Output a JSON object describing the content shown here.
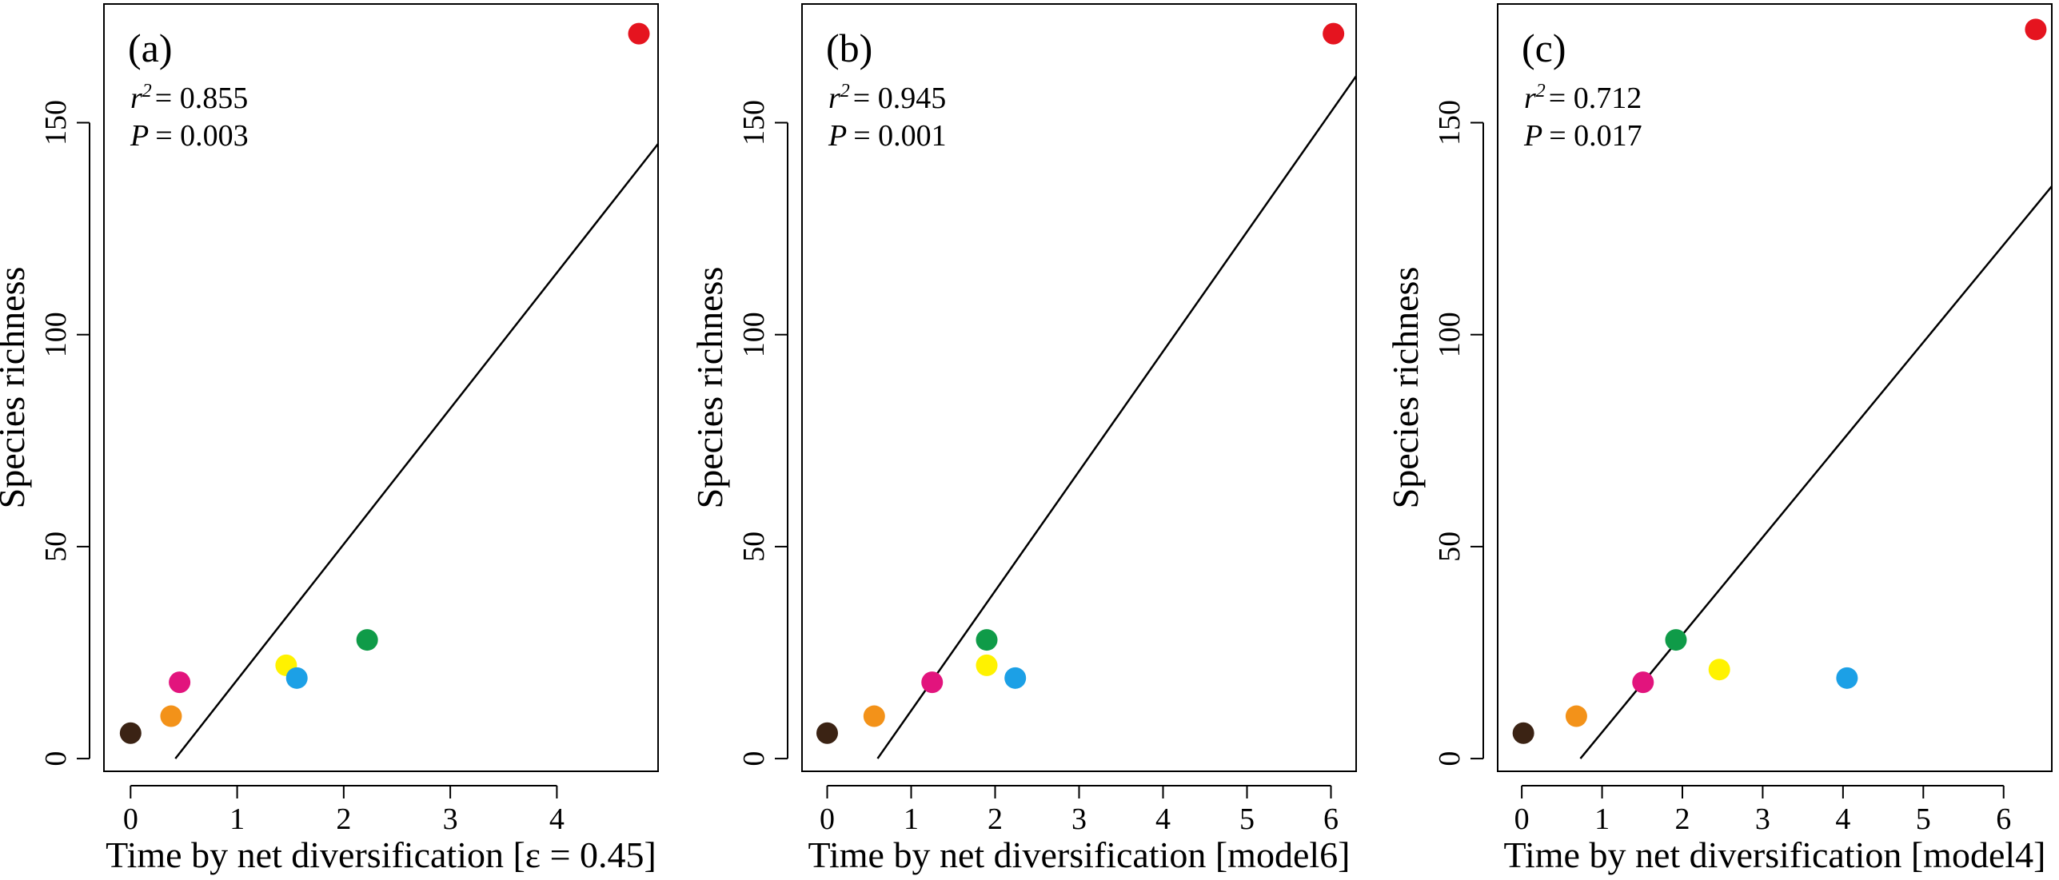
{
  "chart_data": [
    {
      "type": "scatter",
      "panel_label": "(a)",
      "xlabel": "Time by net diversification [ε = 0.45]",
      "ylabel": "Species richness",
      "xlim": [
        -0.25,
        4.95
      ],
      "ylim": [
        -3,
        178
      ],
      "xticks": [
        0,
        1,
        2,
        3,
        4
      ],
      "yticks": [
        0,
        50,
        100,
        150
      ],
      "grid": false,
      "stats": {
        "r2_label": "r",
        "r2_value": "= 0.855",
        "p_label": "P",
        "p_value": "= 0.003"
      },
      "regression_line": {
        "x1": 0.42,
        "y1": 0,
        "x2": 4.95,
        "y2": 145
      },
      "points": [
        {
          "x": 0.0,
          "y": 6,
          "color": "#3b2314"
        },
        {
          "x": 0.38,
          "y": 10,
          "color": "#f39219"
        },
        {
          "x": 0.46,
          "y": 18,
          "color": "#e2147d"
        },
        {
          "x": 1.46,
          "y": 22,
          "color": "#fff200"
        },
        {
          "x": 1.56,
          "y": 19,
          "color": "#1ca0e6"
        },
        {
          "x": 2.22,
          "y": 28,
          "color": "#0f9b48"
        },
        {
          "x": 4.77,
          "y": 171,
          "color": "#e5141f"
        }
      ]
    },
    {
      "type": "scatter",
      "panel_label": "(b)",
      "xlabel": "Time by net diversification [model6]",
      "ylabel": "Species richness",
      "xlim": [
        -0.3,
        6.3
      ],
      "ylim": [
        -3,
        178
      ],
      "xticks": [
        0,
        1,
        2,
        3,
        4,
        5,
        6
      ],
      "yticks": [
        0,
        50,
        100,
        150
      ],
      "grid": false,
      "stats": {
        "r2_label": "r",
        "r2_value": "= 0.945",
        "p_label": "P",
        "p_value": "= 0.001"
      },
      "regression_line": {
        "x1": 0.6,
        "y1": 0,
        "x2": 6.3,
        "y2": 161
      },
      "points": [
        {
          "x": 0.0,
          "y": 6,
          "color": "#3b2314"
        },
        {
          "x": 0.56,
          "y": 10,
          "color": "#f39219"
        },
        {
          "x": 1.25,
          "y": 18,
          "color": "#e2147d"
        },
        {
          "x": 1.9,
          "y": 22,
          "color": "#fff200"
        },
        {
          "x": 2.24,
          "y": 19,
          "color": "#1ca0e6"
        },
        {
          "x": 1.9,
          "y": 28,
          "color": "#0f9b48"
        },
        {
          "x": 6.03,
          "y": 171,
          "color": "#e5141f"
        }
      ]
    },
    {
      "type": "scatter",
      "panel_label": "(c)",
      "xlabel": "Time by net diversification [model4]",
      "ylabel": "Species richness",
      "xlim": [
        -0.3,
        6.6
      ],
      "ylim": [
        -3,
        178
      ],
      "xticks": [
        0,
        1,
        2,
        3,
        4,
        5,
        6
      ],
      "yticks": [
        0,
        50,
        100,
        150
      ],
      "grid": false,
      "stats": {
        "r2_label": "r",
        "r2_value": "= 0.712",
        "p_label": "P",
        "p_value": "= 0.017"
      },
      "regression_line": {
        "x1": 0.73,
        "y1": 0,
        "x2": 6.6,
        "y2": 135
      },
      "points": [
        {
          "x": 0.02,
          "y": 6,
          "color": "#3b2314"
        },
        {
          "x": 0.68,
          "y": 10,
          "color": "#f39219"
        },
        {
          "x": 1.51,
          "y": 18,
          "color": "#e2147d"
        },
        {
          "x": 2.46,
          "y": 21,
          "color": "#fff200"
        },
        {
          "x": 4.05,
          "y": 19,
          "color": "#1ca0e6"
        },
        {
          "x": 1.92,
          "y": 28,
          "color": "#0f9b48"
        },
        {
          "x": 6.4,
          "y": 172,
          "color": "#e5141f"
        }
      ]
    }
  ]
}
